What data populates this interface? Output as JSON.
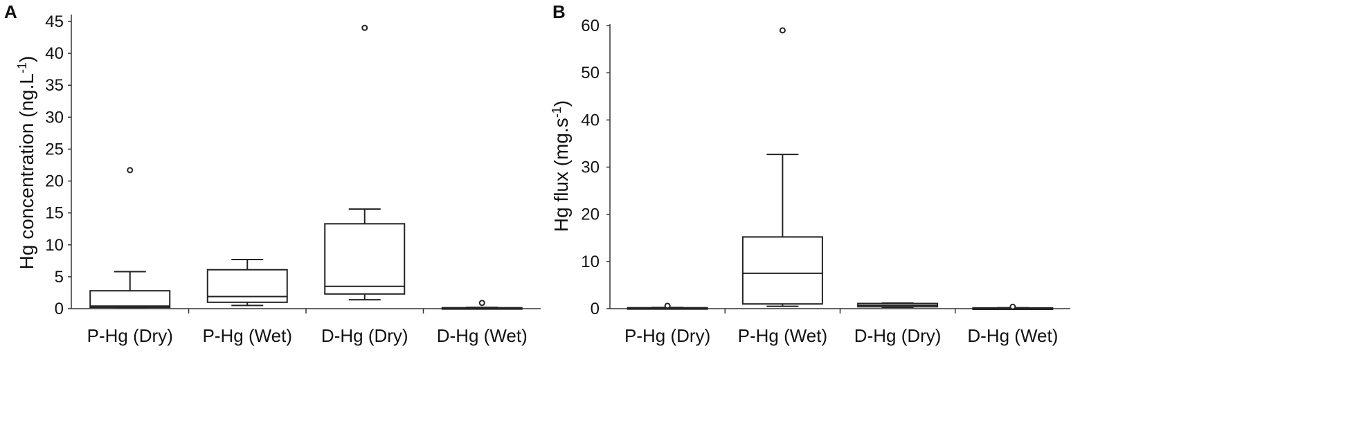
{
  "chart_data": [
    {
      "panel": "A",
      "type": "box",
      "xlabel": "",
      "ylabel": "Hg concentration (ng.L",
      "ylabel_sup": "-1",
      "ylabel_end": ")",
      "ylim": [
        0,
        45
      ],
      "yticks": [
        0,
        5,
        10,
        15,
        20,
        25,
        30,
        35,
        40,
        45
      ],
      "categories": [
        "P-Hg (Dry)",
        "P-Hg (Wet)",
        "D-Hg (Dry)",
        "D-Hg (Wet)"
      ],
      "boxes": [
        {
          "whisker_low": 0.2,
          "q1": 0.2,
          "median": 0.4,
          "q3": 2.8,
          "whisker_high": 5.8,
          "outliers": [
            21.7
          ]
        },
        {
          "whisker_low": 0.5,
          "q1": 1.0,
          "median": 1.9,
          "q3": 6.1,
          "whisker_high": 7.7,
          "outliers": []
        },
        {
          "whisker_low": 1.4,
          "q1": 2.3,
          "median": 3.5,
          "q3": 13.3,
          "whisker_high": 15.6,
          "outliers": [
            44.0
          ]
        },
        {
          "whisker_low": 0.05,
          "q1": 0.05,
          "median": 0.1,
          "q3": 0.15,
          "whisker_high": 0.2,
          "outliers": [
            0.9
          ]
        }
      ]
    },
    {
      "panel": "B",
      "type": "box",
      "xlabel": "",
      "ylabel": "Hg flux (mg.s",
      "ylabel_sup": "-1",
      "ylabel_end": ")",
      "ylim": [
        0,
        60
      ],
      "yticks": [
        0,
        10,
        20,
        30,
        40,
        50,
        60
      ],
      "categories": [
        "P-Hg (Dry)",
        "P-Hg (Wet)",
        "D-Hg (Dry)",
        "D-Hg (Wet)"
      ],
      "boxes": [
        {
          "whisker_low": 0.05,
          "q1": 0.05,
          "median": 0.1,
          "q3": 0.2,
          "whisker_high": 0.25,
          "outliers": [
            0.6
          ]
        },
        {
          "whisker_low": 0.5,
          "q1": 1.0,
          "median": 7.5,
          "q3": 15.2,
          "whisker_high": 32.7,
          "outliers": [
            59.0
          ]
        },
        {
          "whisker_low": 0.3,
          "q1": 0.4,
          "median": 0.7,
          "q3": 1.1,
          "whisker_high": 1.2,
          "outliers": []
        },
        {
          "whisker_low": 0.05,
          "q1": 0.05,
          "median": 0.1,
          "q3": 0.15,
          "whisker_high": 0.2,
          "outliers": [
            0.4
          ]
        }
      ]
    }
  ]
}
